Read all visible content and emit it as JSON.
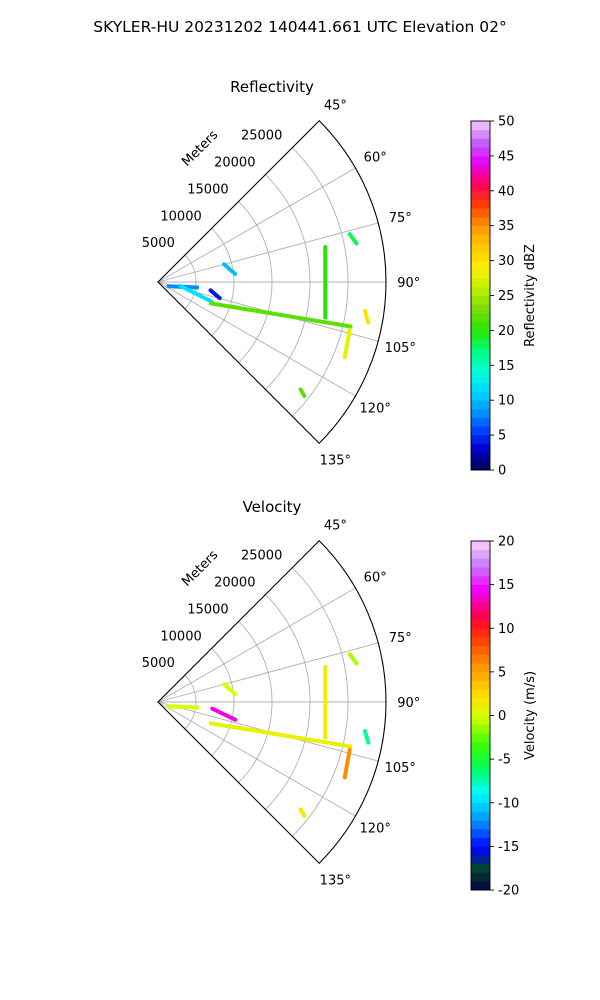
{
  "figure_title": "SKYLER-HU  20231202  140441.661 UTC Elevation 02°",
  "chart_data": [
    {
      "type": "polar-sector",
      "title": "Reflectivity",
      "radial_axis_label": "Meters",
      "radial_ticks": [
        5000,
        10000,
        15000,
        20000,
        25000
      ],
      "radial_range": [
        0,
        30000
      ],
      "angle_ticks_deg": [
        45,
        60,
        75,
        90,
        105,
        120,
        135
      ],
      "angle_range_deg": [
        45,
        135
      ],
      "grid": true,
      "colorbar": {
        "label": "Reflectivity dBZ",
        "range": [
          0,
          50
        ],
        "ticks": [
          0,
          5,
          10,
          15,
          20,
          25,
          30,
          35,
          40,
          45,
          50
        ]
      },
      "echoes": [
        {
          "from": [
            1500,
            112
          ],
          "to": [
            5200,
            98
          ],
          "value": 8
        },
        {
          "from": [
            3000,
            100
          ],
          "to": [
            7500,
            110
          ],
          "value": 12
        },
        {
          "from": [
            7000,
            99
          ],
          "to": [
            8500,
            105
          ],
          "value": 4
        },
        {
          "from": [
            9000,
            75
          ],
          "to": [
            10200,
            84
          ],
          "value": 10
        },
        {
          "from": [
            7500,
            112
          ],
          "to": [
            26000,
            103
          ],
          "value": 22
        },
        {
          "from": [
            22500,
            102
          ],
          "to": [
            22500,
            78
          ],
          "value": 20
        },
        {
          "from": [
            26000,
            104
          ],
          "to": [
            26500,
            112
          ],
          "value": 28
        },
        {
          "from": [
            26000,
            76
          ],
          "to": [
            26600,
            79
          ],
          "value": 18
        },
        {
          "from": [
            27500,
            98
          ],
          "to": [
            28200,
            101
          ],
          "value": 30
        },
        {
          "from": [
            23500,
            127
          ],
          "to": [
            24500,
            128
          ],
          "value": 22
        }
      ]
    },
    {
      "type": "polar-sector",
      "title": "Velocity",
      "radial_axis_label": "Meters",
      "radial_ticks": [
        5000,
        10000,
        15000,
        20000,
        25000
      ],
      "radial_range": [
        0,
        30000
      ],
      "angle_ticks_deg": [
        45,
        60,
        75,
        90,
        105,
        120,
        135
      ],
      "angle_range_deg": [
        45,
        135
      ],
      "grid": true,
      "colorbar": {
        "label": "Velocity (m/s)",
        "range": [
          -20,
          20
        ],
        "ticks": [
          -20,
          -15,
          -10,
          -5,
          0,
          5,
          10,
          15,
          20
        ]
      },
      "echoes": [
        {
          "from": [
            1500,
            112
          ],
          "to": [
            5200,
            98
          ],
          "value": 0
        },
        {
          "from": [
            7200,
            97
          ],
          "to": [
            10500,
            103
          ],
          "value": 14
        },
        {
          "from": [
            9000,
            75
          ],
          "to": [
            10200,
            84
          ],
          "value": 0
        },
        {
          "from": [
            7500,
            112
          ],
          "to": [
            26000,
            103
          ],
          "value": 1
        },
        {
          "from": [
            22500,
            102
          ],
          "to": [
            22500,
            78
          ],
          "value": 1
        },
        {
          "from": [
            26000,
            104
          ],
          "to": [
            26500,
            112
          ],
          "value": 6
        },
        {
          "from": [
            26000,
            76
          ],
          "to": [
            26600,
            79
          ],
          "value": -1
        },
        {
          "from": [
            27500,
            98
          ],
          "to": [
            28200,
            101
          ],
          "value": -7
        },
        {
          "from": [
            23500,
            127
          ],
          "to": [
            24500,
            128
          ],
          "value": 1
        }
      ]
    }
  ]
}
